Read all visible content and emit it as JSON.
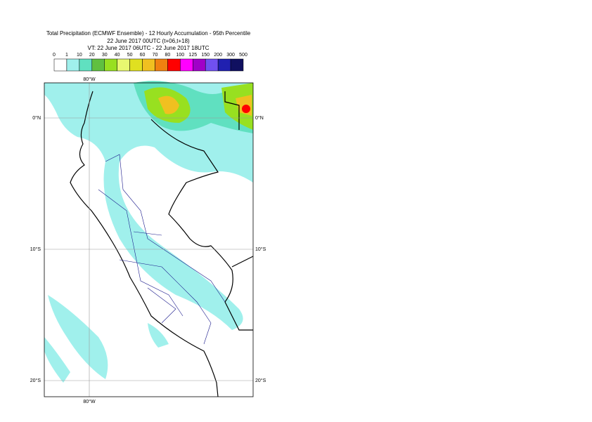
{
  "header": {
    "title_lines": [
      "Total Precipitation (ECMWF Ensemble) - 12 Hourly Accumulation - 95th Percentile",
      "22 June 2017 00UTC (t+06,t+18)",
      "VT: 22 June 2017 06UTC - 22 June 2017 18UTC"
    ]
  },
  "legend": {
    "labels": [
      "0",
      "1",
      "10",
      "20",
      "30",
      "40",
      "50",
      "60",
      "70",
      "80",
      "100",
      "125",
      "150",
      "200",
      "300",
      "500"
    ],
    "colors": [
      "#ffffff",
      "#a0f0ec",
      "#60e0c0",
      "#60c040",
      "#98e020",
      "#e8f870",
      "#e0e020",
      "#f0c020",
      "#f08010",
      "#ff0000",
      "#ff00ff",
      "#a000c8",
      "#7050f0",
      "#2020b0",
      "#101060"
    ]
  },
  "map": {
    "top_labels": [
      "80°W"
    ],
    "bottom_labels": [
      "80°W"
    ],
    "left_labels": [
      "0°N",
      "10°S",
      "20°S"
    ],
    "right_labels": [
      "0°N",
      "10°S",
      "20°S"
    ]
  }
}
